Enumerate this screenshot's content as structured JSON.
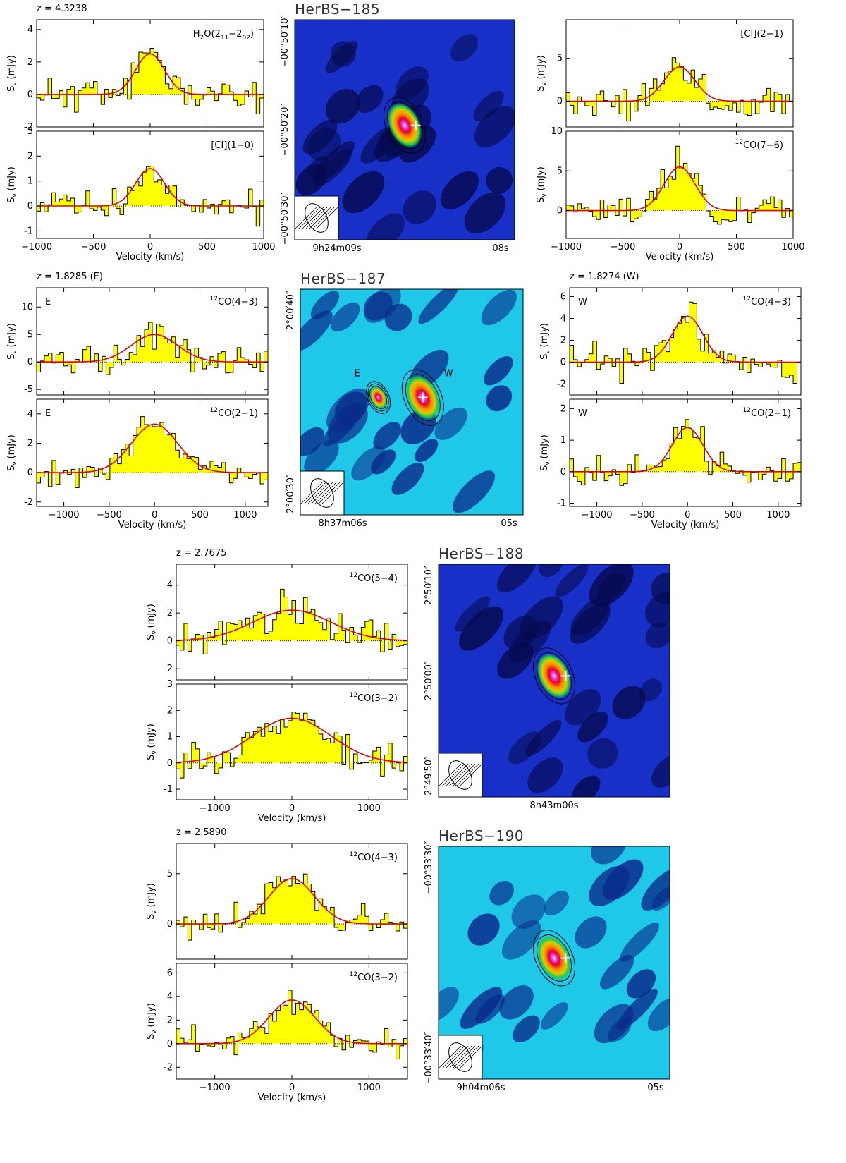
{
  "figure": {
    "sources": [
      {
        "title": "HerBS−185",
        "map": {
          "ylabels": [
            "−00°50′10″",
            "−00°50′20″",
            "−00°50′30″"
          ],
          "xlabels": [
            "9h24m09s",
            "08s"
          ],
          "colormap": "dark-blue",
          "blobs": [
            {
              "label": "",
              "strength": 1.0
            }
          ]
        },
        "left_panels": {
          "z_label": "z = 4.3238",
          "xlabel": "Velocity (km/s)",
          "spectra": [
            {
              "line": "H2O(211−202)",
              "ylabel": "Sν (mJy)",
              "xlim": [
                -1000,
                1000
              ],
              "ylim": [
                -2,
                4.6
              ],
              "yticks": [
                -2,
                0,
                2,
                4
              ],
              "peak": 2.5,
              "center": 0,
              "fwhm": 300,
              "noise": 1.1,
              "seed": 11
            },
            {
              "line": "[CI](1−0)",
              "ylabel": "Sν (mJy)",
              "xlim": [
                -1000,
                1000
              ],
              "ylim": [
                -1.3,
                3
              ],
              "yticks": [
                -1,
                0,
                1,
                2,
                3
              ],
              "peak": 1.5,
              "center": 0,
              "fwhm": 300,
              "noise": 0.6,
              "seed": 12
            }
          ],
          "xticks": [
            -1000,
            -500,
            0,
            500,
            1000
          ]
        },
        "right_panels": {
          "z_label": "",
          "xlabel": "Velocity (km/s)",
          "spectra": [
            {
              "line": "[CI](2−1)",
              "ylabel": "Sν (mJy)",
              "xlim": [
                -1000,
                1000
              ],
              "ylim": [
                -3,
                9.5
              ],
              "yticks": [
                0,
                5
              ],
              "peak": 4.0,
              "center": 0,
              "fwhm": 320,
              "noise": 2.0,
              "seed": 13
            },
            {
              "line": "12CO(7−6)",
              "ylabel": "Sν (mJy)",
              "xlim": [
                -1000,
                1000
              ],
              "ylim": [
                -3.5,
                10
              ],
              "yticks": [
                0,
                5,
                10
              ],
              "peak": 5.5,
              "center": 0,
              "fwhm": 320,
              "noise": 2.0,
              "seed": 14
            }
          ],
          "xticks": [
            -1000,
            -500,
            0,
            500,
            1000
          ]
        }
      },
      {
        "title": "HerBS−187",
        "map": {
          "ylabels": [
            "2°00′40″",
            "2°00′30″"
          ],
          "xlabels": [
            "8h37m06s",
            "05s"
          ],
          "colormap": "cyan",
          "blobs": [
            {
              "label": "E",
              "strength": 0.5
            },
            {
              "label": "W",
              "strength": 1.0
            }
          ]
        },
        "left_panels": {
          "z_label": "z = 1.8285 (E)",
          "xlabel": "Velocity (km/s)",
          "spectra": [
            {
              "line": "12CO(4−3)",
              "tag": "E",
              "ylabel": "Sν (mJy)",
              "xlim": [
                -1300,
                1250
              ],
              "ylim": [
                -6,
                13.5
              ],
              "yticks": [
                -5,
                0,
                5,
                10
              ],
              "peak": 5.0,
              "center": 0,
              "fwhm": 600,
              "noise": 2.5,
              "seed": 21
            },
            {
              "line": "12CO(2−1)",
              "tag": "E",
              "ylabel": "Sν (mJy)",
              "xlim": [
                -1300,
                1250
              ],
              "ylim": [
                -2.3,
                5
              ],
              "yticks": [
                -2,
                0,
                2,
                4
              ],
              "peak": 3.3,
              "center": 0,
              "fwhm": 600,
              "noise": 0.8,
              "seed": 22
            }
          ],
          "xticks": [
            -1000,
            -500,
            0,
            500,
            1000
          ]
        },
        "right_panels": {
          "z_label": "z = 1.8274 (W)",
          "xlabel": "Velocity (km/s)",
          "spectra": [
            {
              "line": "12CO(4−3)",
              "tag": "W",
              "ylabel": "Sν (mJy)",
              "xlim": [
                -1300,
                1250
              ],
              "ylim": [
                -3,
                6.8
              ],
              "yticks": [
                -2,
                0,
                2,
                4,
                6
              ],
              "peak": 4.2,
              "center": 0,
              "fwhm": 400,
              "noise": 1.6,
              "seed": 23
            },
            {
              "line": "12CO(2−1)",
              "tag": "W",
              "ylabel": "Sν (mJy)",
              "xlim": [
                -1300,
                1250
              ],
              "ylim": [
                -1.1,
                2.3
              ],
              "yticks": [
                -1,
                0,
                1,
                2
              ],
              "peak": 1.4,
              "center": 0,
              "fwhm": 400,
              "noise": 0.5,
              "seed": 24
            }
          ],
          "xticks": [
            -1000,
            -500,
            0,
            500,
            1000
          ]
        }
      },
      {
        "title": "HerBS−188",
        "map": {
          "ylabels": [
            "2°50′10″",
            "2°50′00″",
            "2°49′50″"
          ],
          "xlabels": [
            "8h43m00s"
          ],
          "colormap": "dark-blue",
          "blobs": [
            {
              "label": "",
              "strength": 1.0
            }
          ]
        },
        "left_panels": {
          "z_label": "z = 2.7675",
          "xlabel": "Velocity (km/s)",
          "spectra": [
            {
              "line": "12CO(5−4)",
              "ylabel": "Sν (mJy)",
              "xlim": [
                -1500,
                1500
              ],
              "ylim": [
                -2.8,
                5.5
              ],
              "yticks": [
                -2,
                0,
                2,
                4
              ],
              "peak": 2.2,
              "center": 0,
              "fwhm": 1200,
              "noise": 1.3,
              "seed": 31
            },
            {
              "line": "12CO(3−2)",
              "ylabel": "Sν (mJy)",
              "xlim": [
                -1500,
                1500
              ],
              "ylim": [
                -1.4,
                3
              ],
              "yticks": [
                -1,
                0,
                1,
                2,
                3
              ],
              "peak": 1.7,
              "center": 0,
              "fwhm": 1200,
              "noise": 0.6,
              "seed": 32
            }
          ],
          "xticks": [
            -1000,
            0,
            1000
          ]
        },
        "right_panels": null
      },
      {
        "title": "HerBS−190",
        "map": {
          "ylabels": [
            "−00°33′30″",
            "−00°33′40″"
          ],
          "xlabels": [
            "9h04m06s",
            "05s"
          ],
          "colormap": "cyan",
          "blobs": [
            {
              "label": "",
              "strength": 1.0
            }
          ]
        },
        "left_panels": {
          "z_label": "z = 2.5890",
          "xlabel": "Velocity (km/s)",
          "spectra": [
            {
              "line": "12CO(4−3)",
              "ylabel": "Sν (mJy)",
              "xlim": [
                -1500,
                1500
              ],
              "ylim": [
                -3.5,
                8
              ],
              "yticks": [
                0,
                5
              ],
              "peak": 4.5,
              "center": 0,
              "fwhm": 700,
              "noise": 1.8,
              "seed": 41
            },
            {
              "line": "12CO(3−2)",
              "ylabel": "Sν (mJy)",
              "xlim": [
                -1500,
                1500
              ],
              "ylim": [
                -3,
                6.8
              ],
              "yticks": [
                -2,
                0,
                2,
                4,
                6
              ],
              "peak": 3.7,
              "center": 0,
              "fwhm": 700,
              "noise": 1.2,
              "seed": 42
            }
          ],
          "xticks": [
            -1000,
            0,
            1000
          ]
        },
        "right_panels": null
      }
    ]
  },
  "chart_data": [
    {
      "type": "line",
      "title": "HerBS−185 H2O(211−202)",
      "xlabel": "Velocity (km/s)",
      "ylabel": "Sν (mJy)",
      "z": 4.3238,
      "gaussian_fit": {
        "peak_mJy": 2.5,
        "center_kms": 0,
        "fwhm_kms": 300
      },
      "xlim": [
        -1000,
        1000
      ],
      "ylim": [
        -2,
        4.6
      ]
    },
    {
      "type": "line",
      "title": "HerBS−185 [CI](1−0)",
      "xlabel": "Velocity (km/s)",
      "ylabel": "Sν (mJy)",
      "z": 4.3238,
      "gaussian_fit": {
        "peak_mJy": 1.5,
        "center_kms": 0,
        "fwhm_kms": 300
      },
      "xlim": [
        -1000,
        1000
      ],
      "ylim": [
        -1.3,
        3
      ]
    },
    {
      "type": "line",
      "title": "HerBS−185 [CI](2−1)",
      "xlabel": "Velocity (km/s)",
      "ylabel": "Sν (mJy)",
      "gaussian_fit": {
        "peak_mJy": 4.0,
        "center_kms": 0,
        "fwhm_kms": 320
      },
      "xlim": [
        -1000,
        1000
      ],
      "ylim": [
        -3,
        9.5
      ]
    },
    {
      "type": "line",
      "title": "HerBS−185 12CO(7−6)",
      "xlabel": "Velocity (km/s)",
      "ylabel": "Sν (mJy)",
      "gaussian_fit": {
        "peak_mJy": 5.5,
        "center_kms": 0,
        "fwhm_kms": 320
      },
      "xlim": [
        -1000,
        1000
      ],
      "ylim": [
        -3.5,
        10
      ]
    },
    {
      "type": "line",
      "title": "HerBS−187 E 12CO(4−3)",
      "xlabel": "Velocity (km/s)",
      "ylabel": "Sν (mJy)",
      "z": 1.8285,
      "gaussian_fit": {
        "peak_mJy": 5.0,
        "center_kms": 0,
        "fwhm_kms": 600
      }
    },
    {
      "type": "line",
      "title": "HerBS−187 E 12CO(2−1)",
      "xlabel": "Velocity (km/s)",
      "ylabel": "Sν (mJy)",
      "z": 1.8285,
      "gaussian_fit": {
        "peak_mJy": 3.3,
        "center_kms": 0,
        "fwhm_kms": 600
      }
    },
    {
      "type": "line",
      "title": "HerBS−187 W 12CO(4−3)",
      "xlabel": "Velocity (km/s)",
      "ylabel": "Sν (mJy)",
      "z": 1.8274,
      "gaussian_fit": {
        "peak_mJy": 4.2,
        "center_kms": 0,
        "fwhm_kms": 400
      }
    },
    {
      "type": "line",
      "title": "HerBS−187 W 12CO(2−1)",
      "xlabel": "Velocity (km/s)",
      "ylabel": "Sν (mJy)",
      "z": 1.8274,
      "gaussian_fit": {
        "peak_mJy": 1.4,
        "center_kms": 0,
        "fwhm_kms": 400
      }
    },
    {
      "type": "line",
      "title": "HerBS−188 12CO(5−4)",
      "xlabel": "Velocity (km/s)",
      "ylabel": "Sν (mJy)",
      "z": 2.7675,
      "gaussian_fit": {
        "peak_mJy": 2.2,
        "center_kms": 0,
        "fwhm_kms": 1200
      }
    },
    {
      "type": "line",
      "title": "HerBS−188 12CO(3−2)",
      "xlabel": "Velocity (km/s)",
      "ylabel": "Sν (mJy)",
      "z": 2.7675,
      "gaussian_fit": {
        "peak_mJy": 1.7,
        "center_kms": 0,
        "fwhm_kms": 1200
      }
    },
    {
      "type": "line",
      "title": "HerBS−190 12CO(4−3)",
      "xlabel": "Velocity (km/s)",
      "ylabel": "Sν (mJy)",
      "z": 2.589,
      "gaussian_fit": {
        "peak_mJy": 4.5,
        "center_kms": 0,
        "fwhm_kms": 700
      }
    },
    {
      "type": "line",
      "title": "HerBS−190 12CO(3−2)",
      "xlabel": "Velocity (km/s)",
      "ylabel": "Sν (mJy)",
      "z": 2.589,
      "gaussian_fit": {
        "peak_mJy": 3.7,
        "center_kms": 0,
        "fwhm_kms": 700
      }
    }
  ]
}
